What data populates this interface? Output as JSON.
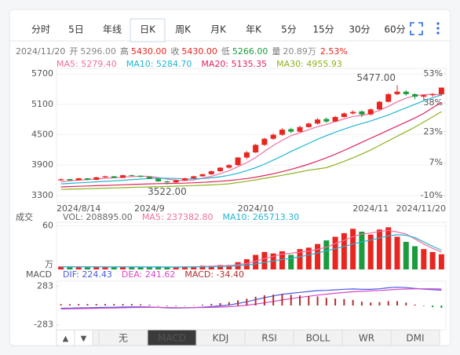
{
  "tabs": {
    "items": [
      "分时",
      "5日",
      "年线",
      "日K",
      "周K",
      "月K",
      "年K",
      "5分",
      "15分",
      "30分",
      "60分"
    ],
    "active": "日K"
  },
  "quote": {
    "date": "2024/11/20",
    "fields": [
      {
        "label": "开",
        "value": "5296.00",
        "color": "#888888"
      },
      {
        "label": "高",
        "value": "5430.00",
        "color": "#e8251f"
      },
      {
        "label": "收",
        "value": "5430.00",
        "color": "#e8251f"
      },
      {
        "label": "低",
        "value": "5266.00",
        "color": "#1a9b3c"
      },
      {
        "label": "量",
        "value": "20.89万",
        "color": "#888888"
      }
    ],
    "change": "2.53%",
    "change_color": "#e8251f"
  },
  "toolbar": {
    "arrows": [
      "▲",
      "▼"
    ],
    "items": [
      "无",
      "MACD",
      "KDJ",
      "RSI",
      "BOLL",
      "WR",
      "DMI"
    ],
    "active": "MACD"
  },
  "chart_data": [
    {
      "type": "candlestick",
      "categories": [
        "2024/8/14",
        null,
        null,
        null,
        null,
        null,
        null,
        null,
        null,
        null,
        "2024/9",
        null,
        null,
        null,
        null,
        null,
        null,
        null,
        null,
        null,
        null,
        null,
        "2024/10",
        null,
        null,
        null,
        null,
        null,
        null,
        null,
        null,
        null,
        null,
        null,
        null,
        "2024/11",
        null,
        null,
        null,
        null,
        null,
        null,
        null,
        "2024/11/20"
      ],
      "open": [
        3600,
        3625,
        3600,
        3640,
        3610,
        3660,
        3680,
        3650,
        3700,
        3690,
        3670,
        3630,
        3580,
        3560,
        3600,
        3640,
        3680,
        3720,
        3780,
        3850,
        3900,
        4050,
        4150,
        4300,
        4420,
        4500,
        4610,
        4560,
        4650,
        4720,
        4810,
        4760,
        4850,
        4920,
        4960,
        4900,
        5000,
        5150,
        5300,
        5350,
        5300,
        5250,
        5280,
        5296
      ],
      "high": [
        3640,
        3630,
        3650,
        3645,
        3670,
        3690,
        3685,
        3710,
        3715,
        3700,
        3675,
        3640,
        3590,
        3610,
        3650,
        3690,
        3730,
        3790,
        3860,
        3920,
        4060,
        4180,
        4320,
        4440,
        4530,
        4630,
        4640,
        4680,
        4740,
        4830,
        4840,
        4870,
        4940,
        4980,
        4980,
        5020,
        5170,
        5320,
        5477,
        5380,
        5320,
        5300,
        5320,
        5430
      ],
      "low": [
        3590,
        3590,
        3595,
        3600,
        3605,
        3650,
        3640,
        3645,
        3680,
        3660,
        3620,
        3570,
        3522,
        3550,
        3590,
        3630,
        3670,
        3710,
        3770,
        3830,
        3890,
        4020,
        4140,
        4280,
        4400,
        4480,
        4530,
        4550,
        4640,
        4700,
        4730,
        4750,
        4840,
        4900,
        4850,
        4880,
        4990,
        5140,
        5280,
        5270,
        5200,
        5180,
        5250,
        5266
      ],
      "close": [
        3620,
        3600,
        3640,
        3610,
        3660,
        3680,
        3650,
        3700,
        3690,
        3670,
        3630,
        3580,
        3560,
        3600,
        3640,
        3680,
        3720,
        3780,
        3850,
        3900,
        4050,
        4150,
        4300,
        4420,
        4500,
        4600,
        4560,
        4650,
        4720,
        4800,
        4760,
        4850,
        4920,
        4950,
        4900,
        5000,
        5150,
        5300,
        5350,
        5300,
        5250,
        5280,
        5296,
        5430
      ],
      "up_color": "#e8251f",
      "down_color": "#1a9b3c",
      "series": [
        {
          "name": "MA5: 5279.40",
          "color": "#f06fa0",
          "values": [
            3570,
            3590,
            3605,
            3615,
            3625,
            3640,
            3650,
            3660,
            3675,
            3680,
            3678,
            3655,
            3625,
            3605,
            3595,
            3610,
            3640,
            3680,
            3730,
            3790,
            3870,
            3950,
            4050,
            4170,
            4290,
            4390,
            4480,
            4540,
            4600,
            4660,
            4700,
            4760,
            4810,
            4860,
            4880,
            4920,
            4980,
            5060,
            5150,
            5220,
            5270,
            5290,
            5300,
            5279.4
          ]
        },
        {
          "name": "MA10: 5284.70",
          "color": "#23b5d3",
          "values": [
            3530,
            3540,
            3550,
            3560,
            3570,
            3580,
            3590,
            3600,
            3615,
            3625,
            3635,
            3640,
            3640,
            3635,
            3630,
            3630,
            3635,
            3650,
            3670,
            3700,
            3740,
            3790,
            3850,
            3920,
            4000,
            4080,
            4170,
            4250,
            4330,
            4410,
            4480,
            4550,
            4610,
            4670,
            4720,
            4770,
            4830,
            4890,
            4960,
            5030,
            5100,
            5170,
            5230,
            5284.7
          ]
        },
        {
          "name": "MA20: 5135.35",
          "color": "#e0245e",
          "values": [
            3470,
            3476,
            3482,
            3488,
            3494,
            3500,
            3506,
            3512,
            3518,
            3524,
            3530,
            3535,
            3538,
            3541,
            3545,
            3552,
            3560,
            3570,
            3582,
            3596,
            3614,
            3636,
            3662,
            3694,
            3730,
            3770,
            3815,
            3865,
            3920,
            3980,
            4045,
            4115,
            4190,
            4270,
            4350,
            4430,
            4510,
            4590,
            4670,
            4750,
            4830,
            4920,
            5030,
            5135.35
          ]
        },
        {
          "name": "MA30: 4955.93",
          "color": "#8fb21e",
          "values": [
            3420,
            3425,
            3430,
            3435,
            3440,
            3445,
            3450,
            3455,
            3460,
            3465,
            3470,
            3475,
            3480,
            3485,
            3490,
            3496,
            3502,
            3510,
            3520,
            3532,
            3556,
            3582,
            3610,
            3640,
            3670,
            3700,
            3732,
            3766,
            3800,
            3825,
            3850,
            3910,
            3975,
            4045,
            4120,
            4200,
            4290,
            4380,
            4470,
            4560,
            4650,
            4750,
            4850,
            4955.93
          ]
        }
      ],
      "ylim": [
        3160,
        5810
      ],
      "yticks": [
        3300,
        3900,
        4500,
        5100,
        5700
      ],
      "y2lim": [
        -13.7,
        55.9
      ],
      "y2ticks": [
        {
          "value": -10,
          "label": "-10%"
        },
        {
          "value": 7,
          "label": "7%"
        },
        {
          "value": 23,
          "label": "23%"
        },
        {
          "value": 38,
          "label": "38%"
        },
        {
          "value": 53,
          "label": "53%"
        }
      ],
      "max_label": "5477.00",
      "min_label": "3522.00",
      "grid": true
    },
    {
      "type": "bar",
      "title": "成交",
      "unit": "万",
      "series": [
        {
          "name": "VOL: 208895.00",
          "color": "#666666",
          "values": [
            4,
            3,
            4,
            3,
            4,
            3,
            3,
            4,
            3,
            3,
            3,
            4,
            3,
            3,
            4,
            4,
            5,
            5,
            6,
            6,
            10,
            14,
            20,
            24,
            22,
            25,
            20,
            28,
            30,
            35,
            40,
            45,
            50,
            56,
            52,
            48,
            55,
            58,
            45,
            38,
            32,
            28,
            24,
            20.89
          ]
        },
        {
          "name": "MA5: 237382.80",
          "type": "line",
          "color": "#f06fa0",
          "values": [
            3.6,
            3.6,
            3.6,
            3.6,
            3.6,
            3.4,
            3.4,
            3.4,
            3.4,
            3.2,
            3.2,
            3.4,
            3.2,
            3.2,
            3.4,
            3.6,
            3.8,
            4.2,
            4.8,
            5.2,
            6.4,
            8.2,
            11.2,
            14.8,
            18,
            21,
            22.2,
            23.8,
            25,
            27.6,
            30.6,
            35.6,
            40,
            45.2,
            48.6,
            50.2,
            52.2,
            53.8,
            51.6,
            48.8,
            42,
            35,
            29,
            23.74
          ]
        },
        {
          "name": "MA10: 265713.30",
          "type": "line",
          "color": "#23b5d3",
          "values": [
            3.5,
            3.5,
            3.5,
            3.5,
            3.5,
            3.5,
            3.5,
            3.5,
            3.5,
            3.4,
            3.4,
            3.4,
            3.3,
            3.3,
            3.3,
            3.4,
            3.5,
            3.7,
            4,
            4.3,
            5,
            6,
            7.6,
            9.6,
            11.6,
            13.6,
            15.2,
            17.4,
            19.8,
            22.6,
            25.6,
            28.6,
            31.6,
            35,
            38,
            40.4,
            43.4,
            46.2,
            47.8,
            47,
            44,
            38,
            32,
            26.57
          ]
        }
      ],
      "ylim": [
        0,
        65
      ],
      "yticks": [
        60
      ]
    },
    {
      "type": "macd",
      "title": "MACD",
      "series": [
        {
          "name": "DIF: 224.43",
          "type": "line",
          "color": "#4a5be0",
          "values": [
            -40,
            -38,
            -35,
            -33,
            -30,
            -27,
            -25,
            -22,
            -20,
            -20,
            -22,
            -28,
            -34,
            -36,
            -34,
            -30,
            -24,
            -15,
            -5,
            8,
            30,
            55,
            85,
            115,
            140,
            165,
            178,
            192,
            205,
            218,
            222,
            230,
            238,
            242,
            236,
            236,
            245,
            260,
            268,
            262,
            250,
            240,
            232,
            224.43
          ]
        },
        {
          "name": "DEA: 241.62",
          "type": "line",
          "color": "#d946c8",
          "values": [
            -50,
            -48,
            -46,
            -44,
            -41,
            -38,
            -36,
            -33,
            -31,
            -29,
            -28,
            -28,
            -29,
            -31,
            -31,
            -31,
            -30,
            -27,
            -23,
            -17,
            -8,
            5,
            21,
            40,
            60,
            81,
            100,
            118,
            135,
            152,
            166,
            179,
            191,
            201,
            208,
            214,
            220,
            228,
            236,
            241,
            243,
            244,
            244,
            241.62
          ]
        },
        {
          "name": "MACD: -34.40",
          "type": "bar",
          "color": "#b03030",
          "negative_color": "#1a9b3c",
          "values": [
            20,
            20,
            22,
            22,
            22,
            22,
            22,
            22,
            22,
            18,
            12,
            0,
            -10,
            -10,
            -6,
            2,
            12,
            24,
            36,
            50,
            76,
            100,
            128,
            150,
            160,
            168,
            156,
            148,
            140,
            132,
            112,
            102,
            94,
            82,
            56,
            44,
            50,
            64,
            64,
            42,
            14,
            -8,
            -24,
            -34.4
          ]
        }
      ],
      "ylim": [
        -310,
        310
      ],
      "yticks": [
        283,
        -283
      ]
    }
  ]
}
